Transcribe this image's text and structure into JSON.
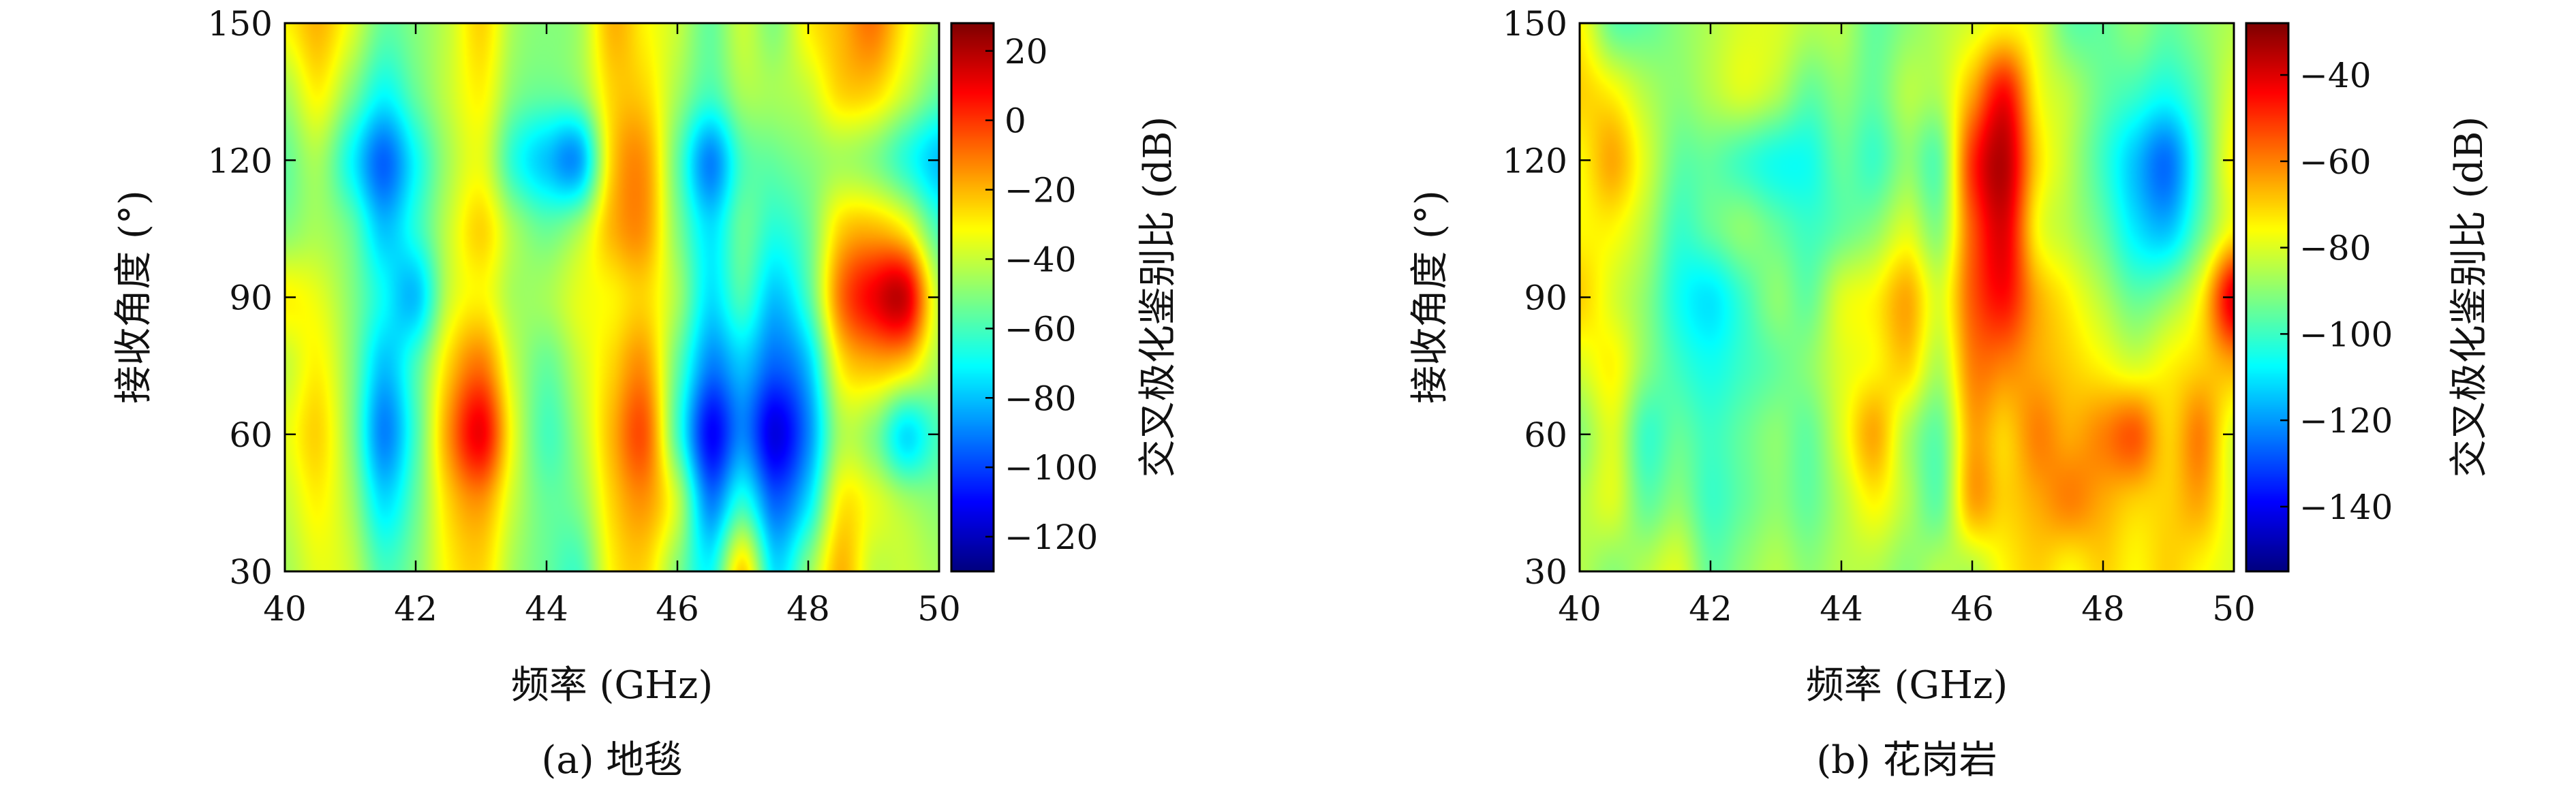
{
  "chart_data": [
    {
      "type": "heatmap",
      "caption": "(a) 地毯",
      "xlabel": "频率 (GHz)",
      "ylabel": "接收角度 (°)",
      "colorbar_label": "交叉极化鉴别比 (dB)",
      "colormap": "jet",
      "xlim": [
        40,
        50
      ],
      "ylim": [
        30,
        150
      ],
      "x_ticks": [
        "40",
        "42",
        "44",
        "46",
        "48",
        "50"
      ],
      "y_ticks": [
        "30",
        "60",
        "90",
        "120",
        "150"
      ],
      "clim": [
        -130,
        28
      ],
      "colorbar_ticks": [
        "20",
        "0",
        "−20",
        "−40",
        "−60",
        "−80",
        "−100",
        "−120"
      ],
      "x": [
        40.0,
        40.5,
        41.0,
        41.5,
        42.0,
        42.5,
        43.0,
        43.5,
        44.0,
        44.5,
        45.0,
        45.5,
        46.0,
        46.5,
        47.0,
        47.5,
        48.0,
        48.5,
        49.0,
        49.5,
        50.0
      ],
      "y": [
        30,
        45,
        60,
        75,
        90,
        105,
        120,
        135,
        150
      ],
      "z": [
        [
          -45,
          -35,
          -40,
          -60,
          -50,
          -30,
          -25,
          -45,
          -55,
          -60,
          -30,
          -25,
          -50,
          -70,
          -25,
          -75,
          -50,
          -20,
          -40,
          -40,
          -45
        ],
        [
          -40,
          -30,
          -45,
          -75,
          -55,
          -25,
          -15,
          -40,
          -55,
          -50,
          -25,
          -15,
          -40,
          -90,
          -65,
          -95,
          -75,
          -30,
          -35,
          -45,
          -50
        ],
        [
          -35,
          -25,
          -50,
          -90,
          -60,
          -15,
          10,
          -35,
          -60,
          -45,
          -20,
          -5,
          -60,
          -110,
          -90,
          -115,
          -90,
          -45,
          -50,
          -75,
          -60
        ],
        [
          -40,
          -30,
          -50,
          -80,
          -60,
          -25,
          -10,
          -40,
          -55,
          -40,
          -25,
          -15,
          -55,
          -90,
          -80,
          -95,
          -80,
          -30,
          -20,
          -25,
          -45
        ],
        [
          -30,
          -35,
          -50,
          -70,
          -80,
          -40,
          -30,
          -45,
          -45,
          -35,
          -30,
          -25,
          -45,
          -75,
          -60,
          -80,
          -60,
          -10,
          10,
          15,
          -40
        ],
        [
          -50,
          -45,
          -55,
          -80,
          -65,
          -40,
          -25,
          -45,
          -55,
          -45,
          -20,
          -15,
          -50,
          -75,
          -55,
          -65,
          -55,
          -25,
          -20,
          -30,
          -60
        ],
        [
          -55,
          -45,
          -70,
          -95,
          -70,
          -45,
          -35,
          -65,
          -80,
          -85,
          -25,
          -15,
          -55,
          -90,
          -60,
          -55,
          -50,
          -45,
          -50,
          -65,
          -80
        ],
        [
          -45,
          -30,
          -50,
          -70,
          -55,
          -40,
          -30,
          -50,
          -55,
          -50,
          -25,
          -25,
          -45,
          -60,
          -45,
          -45,
          -40,
          -25,
          -25,
          -40,
          -55
        ],
        [
          -30,
          -20,
          -35,
          -55,
          -50,
          -40,
          -25,
          -45,
          -50,
          -45,
          -20,
          -30,
          -40,
          -55,
          -40,
          -50,
          -30,
          -20,
          -10,
          -30,
          -45
        ]
      ]
    },
    {
      "type": "heatmap",
      "caption": "(b) 花岗岩",
      "xlabel": "频率 (GHz)",
      "ylabel": "接收角度 (°)",
      "colorbar_label": "交叉极化鉴别比 (dB)",
      "colormap": "jet",
      "xlim": [
        40,
        50
      ],
      "ylim": [
        30,
        150
      ],
      "x_ticks": [
        "40",
        "42",
        "44",
        "46",
        "48",
        "50"
      ],
      "y_ticks": [
        "30",
        "60",
        "90",
        "120",
        "150"
      ],
      "clim": [
        -155,
        -28
      ],
      "colorbar_ticks": [
        "−40",
        "−60",
        "−80",
        "−100",
        "−120",
        "−140"
      ],
      "x": [
        40.0,
        40.5,
        41.0,
        41.5,
        42.0,
        42.5,
        43.0,
        43.5,
        44.0,
        44.5,
        45.0,
        45.5,
        46.0,
        46.5,
        47.0,
        47.5,
        48.0,
        48.5,
        49.0,
        49.5,
        50.0
      ],
      "y": [
        30,
        45,
        60,
        75,
        90,
        105,
        120,
        135,
        150
      ],
      "z": [
        [
          -85,
          -90,
          -85,
          -80,
          -95,
          -90,
          -85,
          -90,
          -85,
          -85,
          -90,
          -85,
          -85,
          -75,
          -70,
          -75,
          -70,
          -75,
          -70,
          -75,
          -80
        ],
        [
          -85,
          -80,
          -95,
          -90,
          -100,
          -95,
          -90,
          -95,
          -85,
          -75,
          -85,
          -95,
          -65,
          -70,
          -65,
          -60,
          -65,
          -70,
          -70,
          -65,
          -80
        ],
        [
          -90,
          -80,
          -100,
          -95,
          -100,
          -95,
          -90,
          -95,
          -80,
          -65,
          -85,
          -95,
          -65,
          -70,
          -60,
          -65,
          -60,
          -55,
          -70,
          -60,
          -80
        ],
        [
          -80,
          -75,
          -90,
          -100,
          -105,
          -100,
          -95,
          -90,
          -80,
          -75,
          -70,
          -85,
          -60,
          -60,
          -65,
          -70,
          -75,
          -80,
          -75,
          -70,
          -65
        ],
        [
          -70,
          -80,
          -90,
          -105,
          -110,
          -100,
          -90,
          -95,
          -80,
          -75,
          -65,
          -80,
          -55,
          -45,
          -65,
          -75,
          -85,
          -95,
          -90,
          -75,
          -40
        ],
        [
          -75,
          -75,
          -85,
          -100,
          -95,
          -90,
          -95,
          -100,
          -95,
          -90,
          -80,
          -90,
          -55,
          -40,
          -75,
          -85,
          -95,
          -110,
          -115,
          -95,
          -75
        ],
        [
          -75,
          -65,
          -80,
          -95,
          -95,
          -100,
          -105,
          -105,
          -95,
          -100,
          -90,
          -95,
          -50,
          -35,
          -70,
          -85,
          -100,
          -115,
          -125,
          -100,
          -75
        ],
        [
          -70,
          -75,
          -85,
          -90,
          -85,
          -80,
          -85,
          -95,
          -90,
          -95,
          -85,
          -85,
          -65,
          -45,
          -75,
          -85,
          -95,
          -100,
          -105,
          -95,
          -80
        ],
        [
          -75,
          -95,
          -95,
          -90,
          -85,
          -80,
          -80,
          -85,
          -85,
          -95,
          -90,
          -85,
          -80,
          -75,
          -80,
          -95,
          -95,
          -90,
          -95,
          -90,
          -85
        ]
      ]
    }
  ]
}
